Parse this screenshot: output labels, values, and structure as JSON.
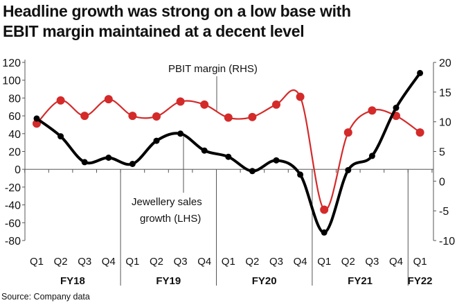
{
  "chart_data": {
    "type": "line",
    "title_lines": [
      "Headline growth was strong on a low base with",
      "EBIT margin maintained at a decent level"
    ],
    "x": [
      "Q1",
      "Q2",
      "Q3",
      "Q4",
      "Q1",
      "Q2",
      "Q3",
      "Q4",
      "Q1",
      "Q2",
      "Q3",
      "Q4",
      "Q1",
      "Q2",
      "Q3",
      "Q4",
      "Q1"
    ],
    "groups": [
      {
        "label": "FY18",
        "count": 4
      },
      {
        "label": "FY19",
        "count": 4
      },
      {
        "label": "FY20",
        "count": 4
      },
      {
        "label": "FY21",
        "count": 4
      },
      {
        "label": "FY22",
        "count": 1
      }
    ],
    "left_axis": {
      "ylim": [
        -80,
        120
      ],
      "ticks": [
        120,
        100,
        80,
        60,
        40,
        20,
        0,
        -20,
        -40,
        -60,
        -80
      ]
    },
    "right_axis": {
      "ylim": [
        -10,
        20
      ],
      "ticks": [
        20,
        15,
        10,
        5,
        0,
        -5,
        -10
      ]
    },
    "series": [
      {
        "name": "Jewellery sales growth (LHS)",
        "label_lines": [
          "Jewellery sales",
          "growth (LHS)"
        ],
        "axis": "left",
        "color": "#000000",
        "values": [
          57,
          37,
          8,
          13,
          6,
          32,
          40,
          21,
          14,
          -2,
          10,
          -6,
          -71,
          -1,
          15,
          69,
          108
        ]
      },
      {
        "name": "PBIT margin (RHS)",
        "label_lines": [
          "PBIT margin (RHS)"
        ],
        "axis": "right",
        "color": "#d42a2a",
        "values": [
          9.7,
          13.6,
          11,
          13.8,
          11,
          10.9,
          13.4,
          12.9,
          10.7,
          10.8,
          12.9,
          14.2,
          -4.8,
          8.2,
          11.9,
          11,
          8.2
        ]
      }
    ],
    "grid": false,
    "source": "Source: Company data"
  }
}
